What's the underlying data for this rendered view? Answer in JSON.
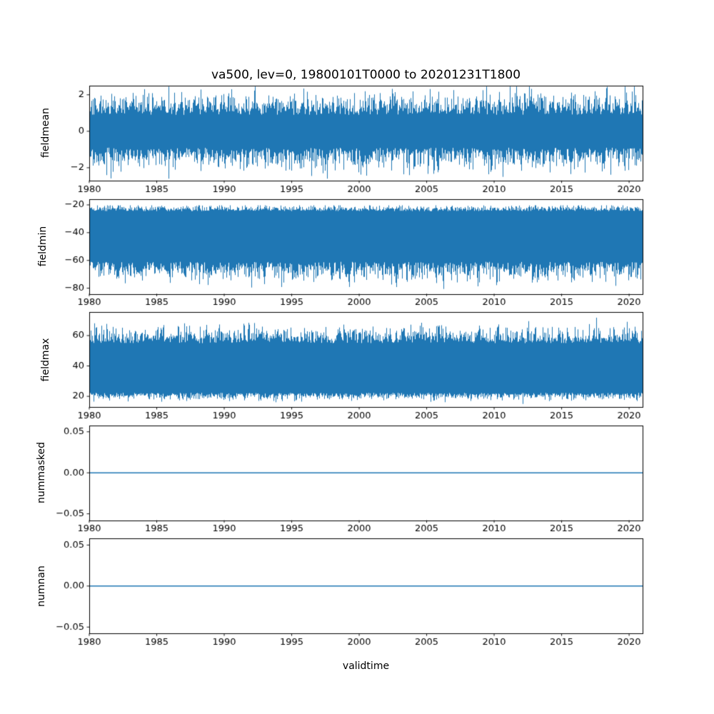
{
  "figure": {
    "title": "va500, lev=0, 19800101T0000 to 20201231T1800",
    "xlabel": "validtime",
    "line_color": "#1f77b4",
    "background": "#ffffff",
    "text_color": "#000000"
  },
  "chart_data": [
    {
      "type": "line",
      "title": "va500, lev=0, 19800101T0000 to 20201231T1800",
      "ylabel": "fieldmean",
      "xlim": [
        1980,
        2021
      ],
      "x_ticks": [
        1980,
        1985,
        1990,
        1995,
        2000,
        2005,
        2010,
        2015,
        2020
      ],
      "x_tick_labels": [
        "1980",
        "1985",
        "1990",
        "1995",
        "2000",
        "2005",
        "2010",
        "2015",
        "2020"
      ],
      "ylim": [
        -2.7,
        2.5
      ],
      "y_ticks": [
        -2,
        0,
        2
      ],
      "y_tick_labels": [
        "−2",
        "0",
        "2"
      ],
      "grid": false,
      "series": [
        {
          "name": "fieldmean",
          "kind": "dense-noise",
          "typical_band": [
            -1.4,
            1.4
          ],
          "extremes": [
            -2.6,
            2.45
          ],
          "envelope": {
            "hi": [
              1.35,
              0.45,
              2.45
            ],
            "lo": [
              -1.35,
              0.45,
              -2.6
            ]
          }
        }
      ]
    },
    {
      "type": "line",
      "ylabel": "fieldmin",
      "xlim": [
        1980,
        2021
      ],
      "x_ticks": [
        1980,
        1985,
        1990,
        1995,
        2000,
        2005,
        2010,
        2015,
        2020
      ],
      "x_tick_labels": [
        "1980",
        "1985",
        "1990",
        "1995",
        "2000",
        "2005",
        "2010",
        "2015",
        "2020"
      ],
      "ylim": [
        -84,
        -15.7
      ],
      "y_ticks": [
        -80,
        -60,
        -40,
        -20
      ],
      "y_tick_labels": [
        "−80",
        "−60",
        "−40",
        "−20"
      ],
      "grid": false,
      "series": [
        {
          "name": "fieldmin",
          "kind": "dense-noise",
          "typical_band": [
            -68,
            -23
          ],
          "extremes": [
            -81,
            -20.3
          ],
          "envelope": {
            "hi": [
              -23,
              1.5,
              -20.3
            ],
            "lo": [
              -66,
              5.0,
              -81
            ]
          }
        }
      ]
    },
    {
      "type": "line",
      "ylabel": "fieldmax",
      "xlim": [
        1980,
        2021
      ],
      "x_ticks": [
        1980,
        1985,
        1990,
        1995,
        2000,
        2005,
        2010,
        2015,
        2020
      ],
      "x_tick_labels": [
        "1980",
        "1985",
        "1990",
        "1995",
        "2000",
        "2005",
        "2010",
        "2015",
        "2020"
      ],
      "ylim": [
        13,
        75.4
      ],
      "y_ticks": [
        20,
        40,
        60
      ],
      "y_tick_labels": [
        "20",
        "40",
        "60"
      ],
      "grid": false,
      "series": [
        {
          "name": "fieldmax",
          "kind": "dense-noise",
          "typical_band": [
            20,
            61
          ],
          "extremes": [
            15,
            73
          ],
          "envelope": {
            "hi": [
              59,
              4.0,
              73
            ],
            "lo": [
              20.5,
              1.8,
              15
            ]
          }
        }
      ]
    },
    {
      "type": "line",
      "ylabel": "nummasked",
      "xlim": [
        1980,
        2021
      ],
      "x_ticks": [
        1980,
        1985,
        1990,
        1995,
        2000,
        2005,
        2010,
        2015,
        2020
      ],
      "x_tick_labels": [
        "1980",
        "1985",
        "1990",
        "1995",
        "2000",
        "2005",
        "2010",
        "2015",
        "2020"
      ],
      "ylim": [
        -0.0578,
        0.0578
      ],
      "y_ticks": [
        -0.05,
        0,
        0.05
      ],
      "y_tick_labels": [
        "−0.05",
        "0.00",
        "0.05"
      ],
      "grid": false,
      "series": [
        {
          "name": "nummasked",
          "kind": "constant",
          "value": 0
        }
      ]
    },
    {
      "type": "line",
      "ylabel": "numnan",
      "xlim": [
        1980,
        2021
      ],
      "x_ticks": [
        1980,
        1985,
        1990,
        1995,
        2000,
        2005,
        2010,
        2015,
        2020
      ],
      "x_tick_labels": [
        "1980",
        "1985",
        "1990",
        "1995",
        "2000",
        "2005",
        "2010",
        "2015",
        "2020"
      ],
      "ylim": [
        -0.0578,
        0.0578
      ],
      "y_ticks": [
        -0.05,
        0,
        0.05
      ],
      "y_tick_labels": [
        "−0.05",
        "0.00",
        "0.05"
      ],
      "grid": false,
      "series": [
        {
          "name": "numnan",
          "kind": "constant",
          "value": 0
        }
      ]
    }
  ]
}
